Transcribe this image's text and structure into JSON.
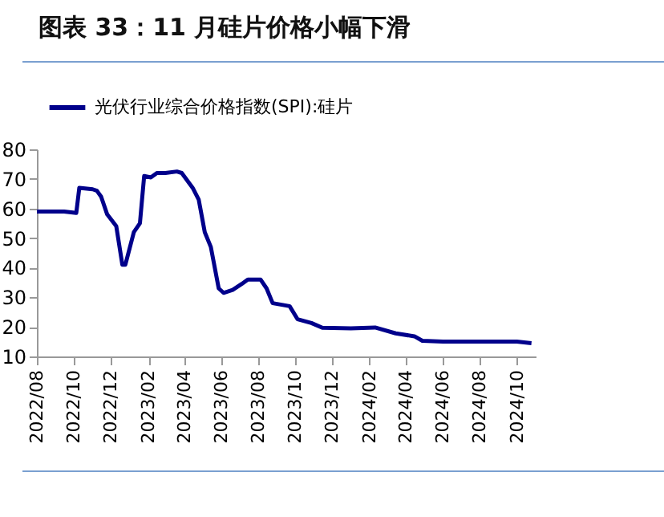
{
  "chart_data": {
    "type": "line",
    "title": "图表 33：11 月硅片价格小幅下滑",
    "x": [
      "2022-08-01",
      "2022-09-15",
      "2022-10-05",
      "2022-10-10",
      "2022-11-01",
      "2022-11-08",
      "2022-11-15",
      "2022-11-25",
      "2022-12-10",
      "2022-12-20",
      "2022-12-25",
      "2023-01-08",
      "2023-01-18",
      "2023-01-25",
      "2023-02-05",
      "2023-02-15",
      "2023-03-01",
      "2023-03-20",
      "2023-03-28",
      "2023-04-15",
      "2023-04-25",
      "2023-05-05",
      "2023-05-15",
      "2023-05-28",
      "2023-06-05",
      "2023-06-20",
      "2023-07-05",
      "2023-07-15",
      "2023-08-05",
      "2023-08-15",
      "2023-08-25",
      "2023-09-22",
      "2023-10-05",
      "2023-10-28",
      "2023-11-15",
      "2024-01-01",
      "2024-02-10",
      "2024-03-15",
      "2024-04-15",
      "2024-04-28",
      "2024-06-01",
      "2024-08-01",
      "2024-10-01",
      "2024-10-25"
    ],
    "series": [
      {
        "name": "光伏行业综合价格指数(SPI):硅片",
        "color": "#00008b",
        "values": [
          59,
          59,
          58.5,
          67,
          66.5,
          66,
          64,
          58,
          54,
          41,
          41,
          52,
          55,
          71,
          70.5,
          72,
          72,
          72.5,
          72,
          67,
          63,
          52,
          47,
          33,
          31.5,
          32.5,
          34.5,
          36,
          36,
          33,
          28,
          27,
          22.6,
          21.3,
          19.7,
          19.5,
          19.8,
          17.8,
          16.8,
          15.3,
          15,
          15,
          15,
          14.5
        ]
      }
    ],
    "xlim": [
      "2022-08-01",
      "2024-11-01"
    ],
    "xticks": [
      {
        "value": "2022-08",
        "label": "2022/08"
      },
      {
        "value": "2022-10",
        "label": "2022/10"
      },
      {
        "value": "2022-12",
        "label": "2022/12"
      },
      {
        "value": "2023-02",
        "label": "2023/02"
      },
      {
        "value": "2023-04",
        "label": "2023/04"
      },
      {
        "value": "2023-06",
        "label": "2023/06"
      },
      {
        "value": "2023-08",
        "label": "2023/08"
      },
      {
        "value": "2023-10",
        "label": "2023/10"
      },
      {
        "value": "2023-12",
        "label": "2023/12"
      },
      {
        "value": "2024-02",
        "label": "2024/02"
      },
      {
        "value": "2024-04",
        "label": "2024/04"
      },
      {
        "value": "2024-06",
        "label": "2024/06"
      },
      {
        "value": "2024-08",
        "label": "2024/08"
      },
      {
        "value": "2024-10",
        "label": "2024/10"
      }
    ],
    "ylim": [
      10,
      80
    ],
    "yticks": [
      10,
      20,
      30,
      40,
      50,
      60,
      70,
      80
    ],
    "grid": false,
    "legend": "top"
  }
}
